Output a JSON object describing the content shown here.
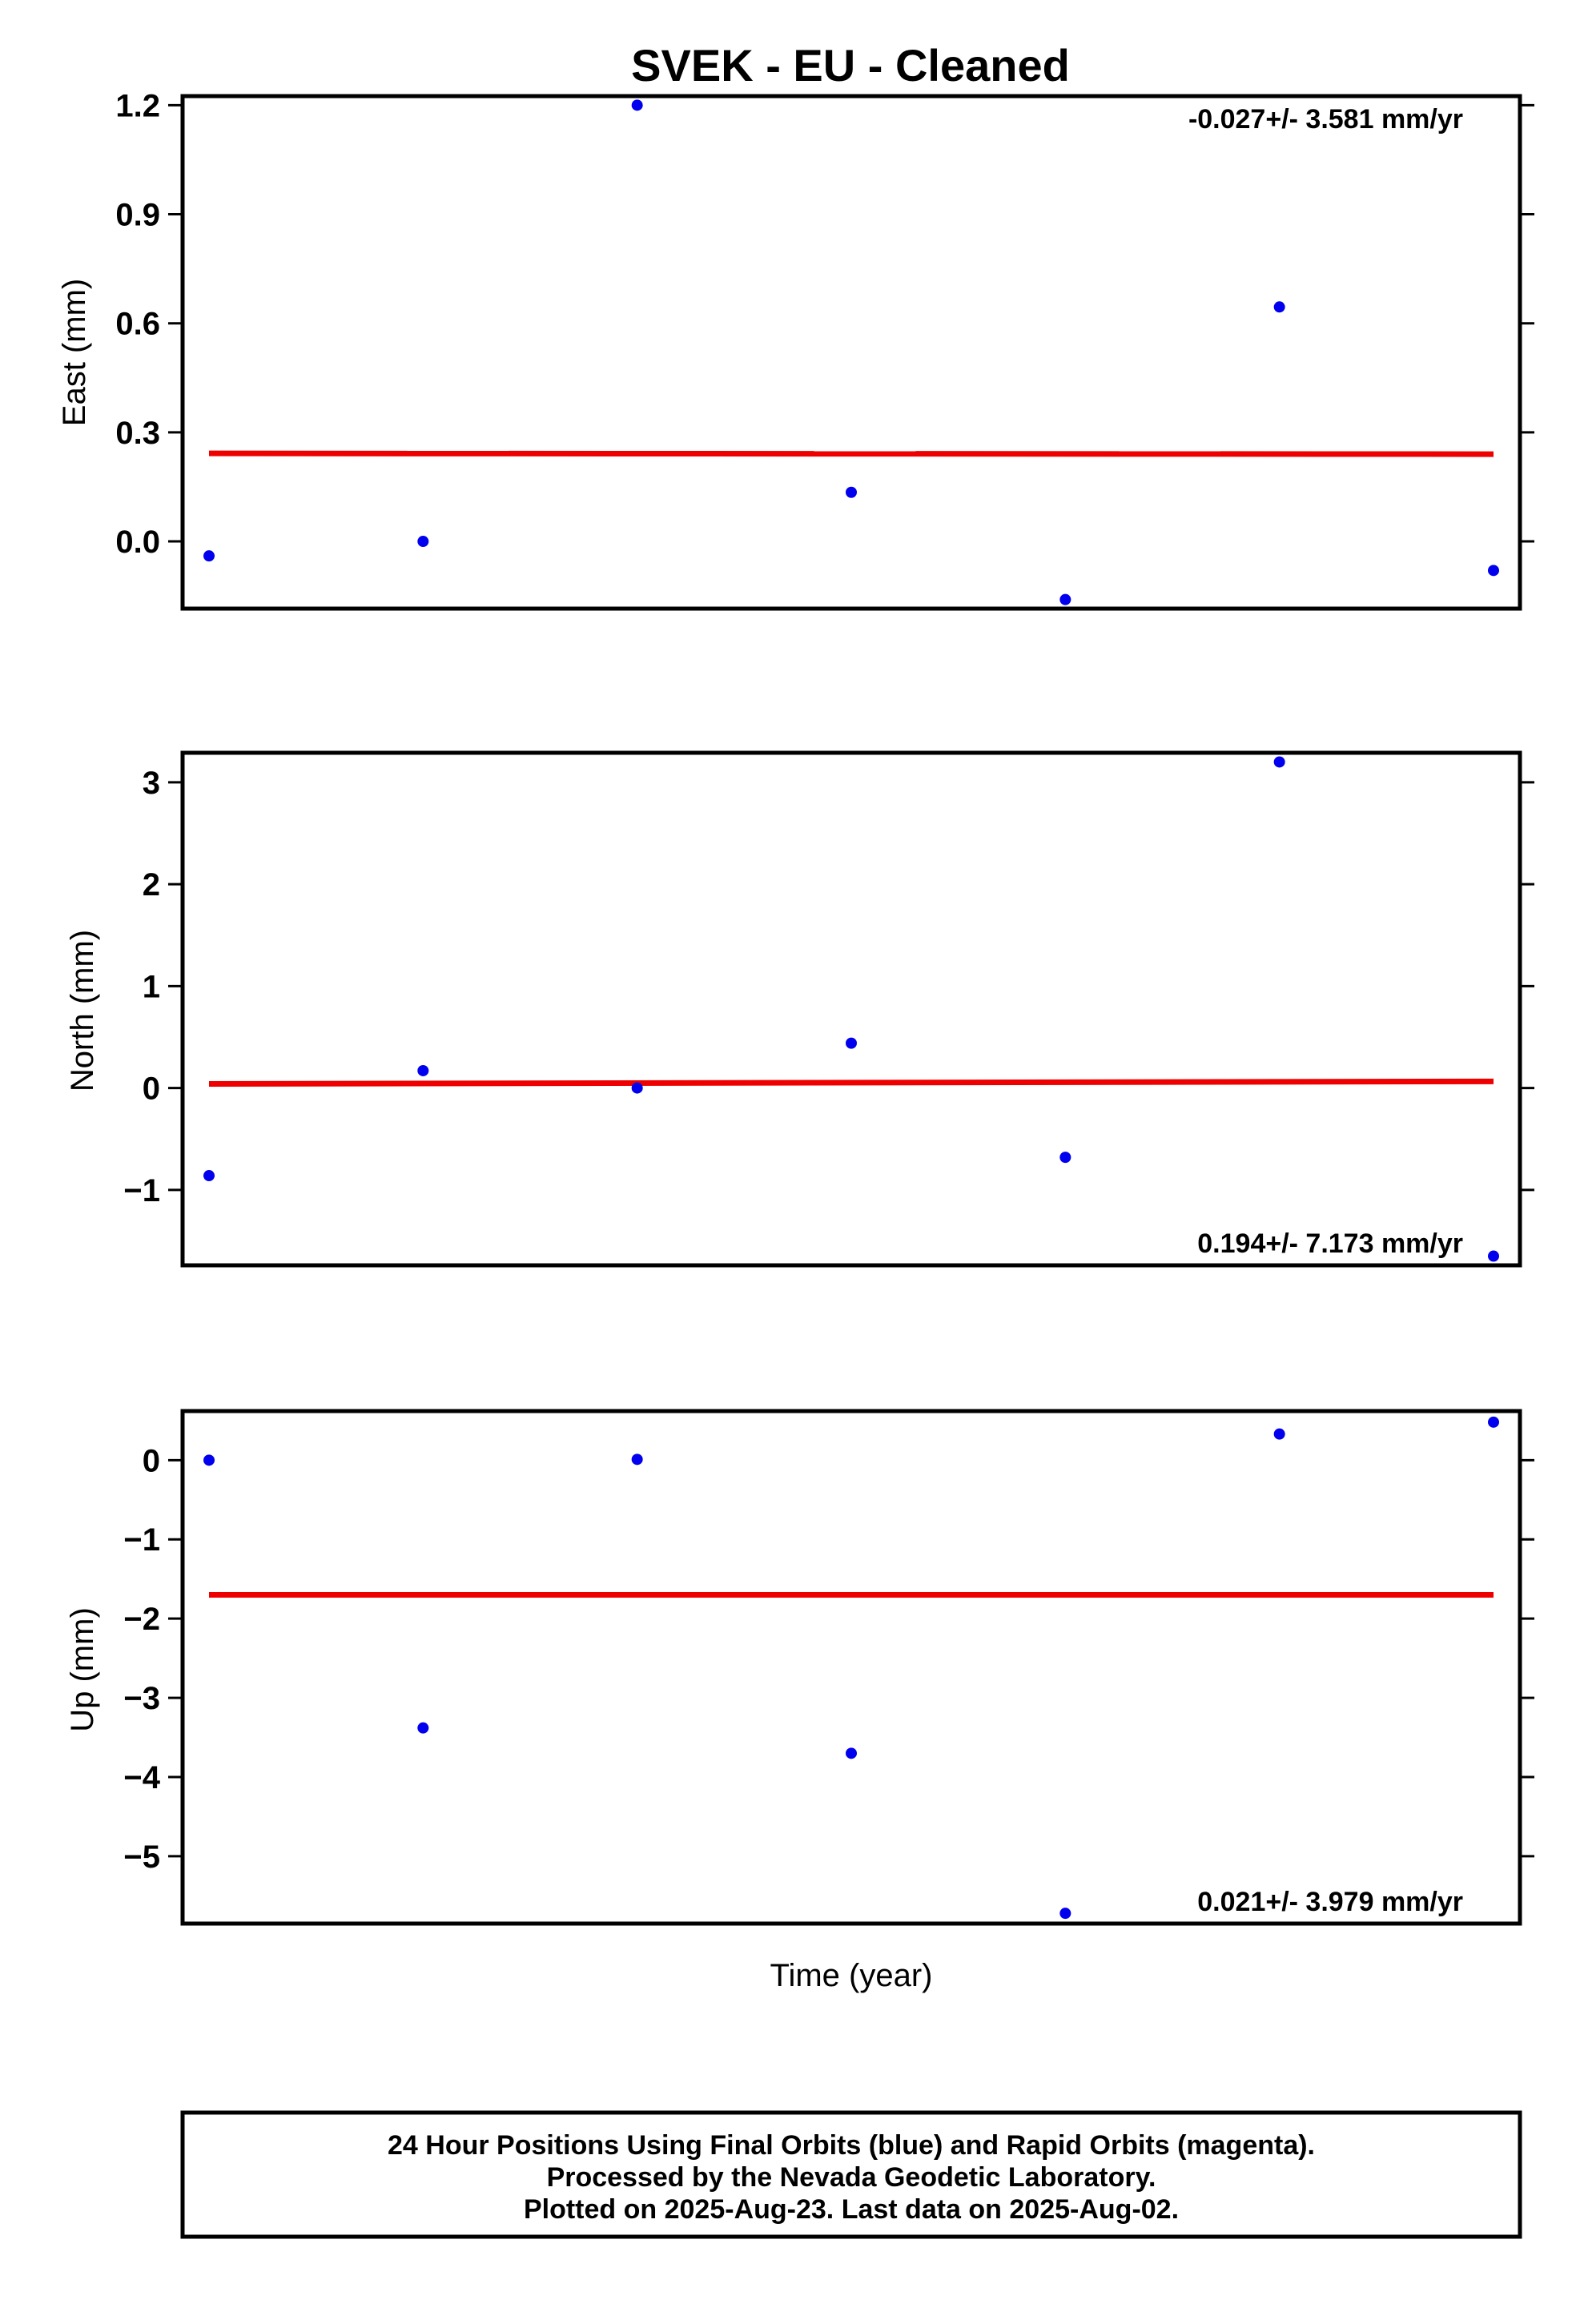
{
  "chart_data": {
    "type": "scatter",
    "title": "SVEK  - EU - Cleaned",
    "xlabel": "Time (year)",
    "colors": {
      "points": "#0000ee",
      "trend": "#ee0000"
    },
    "panels": [
      {
        "ylabel": "East (mm)",
        "ylim": [
          -0.185,
          1.225
        ],
        "yticks": [
          "1.2",
          "0.9",
          "0.6",
          "0.3",
          "0.0"
        ],
        "ytick_values": [
          1.2,
          0.9,
          0.6,
          0.3,
          0.0
        ],
        "rate": "-0.027+/- 3.581 mm/yr",
        "rate_position": "top-right",
        "x": [
          0,
          1,
          2,
          3,
          4,
          5,
          6
        ],
        "y": [
          -0.04,
          0.0,
          1.2,
          0.135,
          -0.16,
          0.645,
          -0.08
        ],
        "trend": [
          0.242,
          0.24
        ]
      },
      {
        "ylabel": "North (mm)",
        "ylim": [
          -1.74,
          3.29
        ],
        "yticks": [
          "3",
          "2",
          "1",
          "0",
          "−1"
        ],
        "ytick_values": [
          3,
          2,
          1,
          0,
          -1
        ],
        "rate": "0.194+/- 7.173 mm/yr",
        "rate_position": "bottom-right",
        "x": [
          0,
          1,
          2,
          3,
          4,
          5,
          6
        ],
        "y": [
          -0.86,
          0.17,
          0.0,
          0.44,
          -0.68,
          3.2,
          -1.65
        ],
        "trend": [
          0.04,
          0.065
        ]
      },
      {
        "ylabel": "Up (mm)",
        "ylim": [
          -5.85,
          0.62
        ],
        "yticks": [
          "0",
          "−1",
          "−2",
          "−3",
          "−4",
          "−5"
        ],
        "ytick_values": [
          0,
          -1,
          -2,
          -3,
          -4,
          -5
        ],
        "rate": "0.021+/- 3.979 mm/yr",
        "rate_position": "bottom-right",
        "x": [
          0,
          1,
          2,
          3,
          4,
          5,
          6
        ],
        "y": [
          0.0,
          -3.38,
          0.01,
          -3.7,
          -5.72,
          0.33,
          0.48
        ],
        "trend": [
          -1.7,
          -1.7
        ]
      }
    ]
  },
  "footer": {
    "line1": "24 Hour Positions Using Final Orbits (blue) and Rapid Orbits (magenta).",
    "line2": "Processed by the Nevada Geodetic Laboratory.",
    "line3": "Plotted on 2025-Aug-23. Last data on 2025-Aug-02."
  }
}
